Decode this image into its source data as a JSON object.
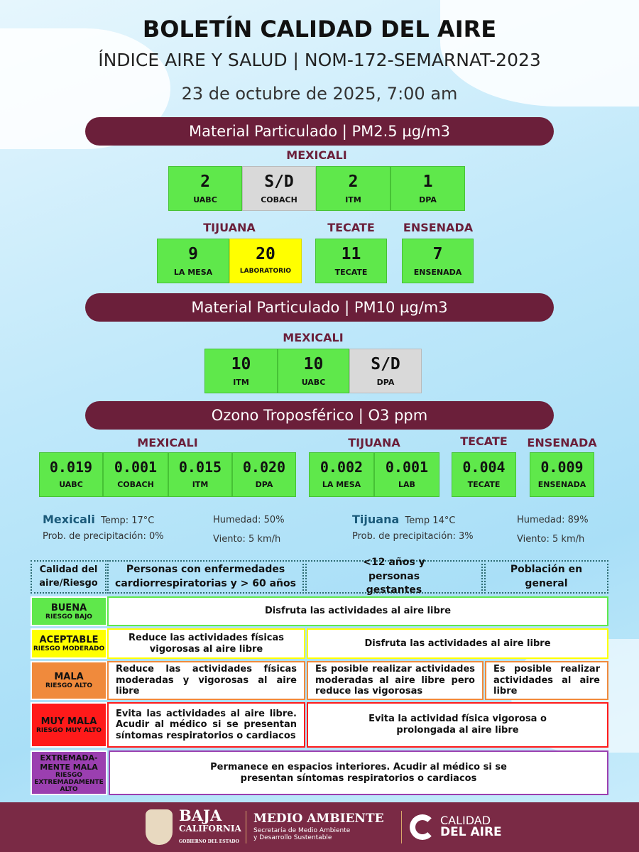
{
  "header": {
    "title": "BOLETÍN CALIDAD DEL AIRE",
    "subtitle": "ÍNDICE AIRE Y SALUD  | NOM-172-SEMARNAT-2023",
    "date": "23 de octubre de 2025, 7:00 am"
  },
  "pm25": {
    "title": "Material Particulado  | PM2.5  µg/m3",
    "mexicali_label": "MEXICALI",
    "tijuana_label": "TIJUANA",
    "tecate_label": "TECATE",
    "ensenada_label": "ENSENADA",
    "stations": [
      {
        "value": "2",
        "name": "UABC",
        "status": "green"
      },
      {
        "value": "S/D",
        "name": "COBACH",
        "status": "gray"
      },
      {
        "value": "2",
        "name": "ITM",
        "status": "green"
      },
      {
        "value": "1",
        "name": "DPA",
        "status": "green"
      },
      {
        "value": "9",
        "name": "LA MESA",
        "status": "green"
      },
      {
        "value": "20",
        "name": "LABORATORIO",
        "status": "yellow"
      },
      {
        "value": "11",
        "name": "TECATE",
        "status": "green"
      },
      {
        "value": "7",
        "name": "ENSENADA",
        "status": "green"
      }
    ]
  },
  "pm10": {
    "title": "Material Particulado  | PM10  µg/m3",
    "mexicali_label": "MEXICALI",
    "stations": [
      {
        "value": "10",
        "name": "ITM",
        "status": "green"
      },
      {
        "value": "10",
        "name": "UABC",
        "status": "green"
      },
      {
        "value": "S/D",
        "name": "DPA",
        "status": "gray"
      }
    ]
  },
  "o3": {
    "title": "Ozono Troposférico  | O3  ppm",
    "mexicali_label": "MEXICALI",
    "tijuana_label": "TIJUANA",
    "tecate_label": "TECATE",
    "ensenada_label": "ENSENADA",
    "stations": [
      {
        "value": "0.019",
        "name": "UABC"
      },
      {
        "value": "0.001",
        "name": "COBACH"
      },
      {
        "value": "0.015",
        "name": "ITM"
      },
      {
        "value": "0.020",
        "name": "DPA"
      },
      {
        "value": "0.002",
        "name": "LA MESA"
      },
      {
        "value": "0.001",
        "name": "LAB"
      },
      {
        "value": "0.004",
        "name": "TECATE"
      },
      {
        "value": "0.009",
        "name": "ENSENADA"
      }
    ]
  },
  "weather": {
    "mexicali": {
      "city": "Mexicali",
      "temp": "Temp:  17°C",
      "humidity": "Humedad: 50%",
      "precip": "Prob. de precipitación:  0%",
      "wind": "Viento: 5 km/h"
    },
    "tijuana": {
      "city": "Tijuana",
      "temp": "Temp 14°C",
      "humidity": "Humedad: 89%",
      "precip": "Prob. de precipitación:  3%",
      "wind": "Viento:  5 km/h"
    }
  },
  "table": {
    "headers": [
      "Calidad del aire/Riesgo",
      "Personas con enfermedades cardiorrespiratorias y > 60 años",
      "<12 años y personas gestantes",
      "Población en general"
    ],
    "rows": [
      {
        "level": "BUENA",
        "risk": "RIESGO BAJO",
        "color": "#5fe84b",
        "msgs": [
          "Disfruta las actividades al aire libre"
        ]
      },
      {
        "level": "ACEPTABLE",
        "risk": "RIESGO MODERADO",
        "color": "#ffff00",
        "msgs": [
          "Reduce las actividades físicas vigorosas al aire libre",
          "Disfruta las actividades al aire libre"
        ]
      },
      {
        "level": "MALA",
        "risk": "RIESGO ALTO",
        "color": "#f08a3c",
        "msgs": [
          "Reduce las actividades físicas moderadas y vigorosas al aire libre",
          "Es posible realizar actividades moderadas al aire libre pero reduce las vigorosas",
          "Es posible realizar actividades al aire libre"
        ]
      },
      {
        "level": "MUY MALA",
        "risk": "RIESGO MUY ALTO",
        "color": "#ff1a1a",
        "msgs": [
          "Evita las actividades al aire libre. Acudir al médico si se presentan síntomas respiratorios o cardiacos",
          "Evita la actividad física vigorosa o prolongada al aire libre"
        ]
      },
      {
        "level": "EXTREMADA-MENTE MALA",
        "risk": "RIESGO EXTREMADAMENTE ALTO",
        "color": "#9b3fb0",
        "msgs": [
          "Permanece en espacios interiores. Acudir al médico si se presentan síntomas respiratorios o cardiacos"
        ]
      }
    ]
  },
  "footer": {
    "gov_line1": "BAJA",
    "gov_line2": "CALIFORNIA",
    "gov_line3": "GOBIERNO DEL ESTADO",
    "dept_title": "MEDIO AMBIENTE",
    "dept_sub1": "Secretaría de Medio Ambiente",
    "dept_sub2": "y Desarrollo Sustentable",
    "brand1": "CALIDAD",
    "brand2": "DEL AIRE"
  }
}
